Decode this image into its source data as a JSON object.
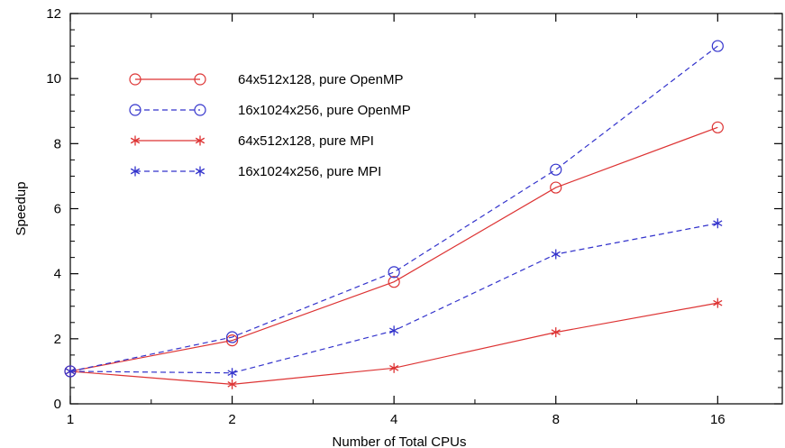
{
  "chart_data": {
    "type": "line",
    "x_scale": "log2",
    "categories": [
      "1",
      "2",
      "4",
      "8",
      "16"
    ],
    "x": [
      1,
      2,
      4,
      8,
      16
    ],
    "xlim": [
      1,
      21.1
    ],
    "ylim": [
      0,
      12
    ],
    "yticks": [
      "0",
      "2",
      "4",
      "6",
      "8",
      "10",
      "12"
    ],
    "xlabel": "Number of Total CPUs",
    "ylabel": "Speedup",
    "title": "",
    "grid": false,
    "legend_position": "top-left",
    "series": [
      {
        "name": "64x512x128, pure OpenMP",
        "color": "#dd3333",
        "dash": "solid",
        "marker": "circle",
        "values": [
          1.0,
          1.95,
          3.75,
          6.65,
          8.5
        ]
      },
      {
        "name": "16x1024x256, pure OpenMP",
        "color": "#3333cc",
        "dash": "dashed",
        "marker": "circle",
        "values": [
          1.0,
          2.05,
          4.05,
          7.2,
          11.0
        ]
      },
      {
        "name": "64x512x128, pure MPI",
        "color": "#dd3333",
        "dash": "solid",
        "marker": "star",
        "values": [
          1.0,
          0.6,
          1.1,
          2.2,
          3.1
        ]
      },
      {
        "name": "16x1024x256, pure MPI",
        "color": "#3333cc",
        "dash": "dashed",
        "marker": "star",
        "values": [
          1.0,
          0.95,
          2.25,
          4.6,
          5.55
        ]
      }
    ]
  }
}
